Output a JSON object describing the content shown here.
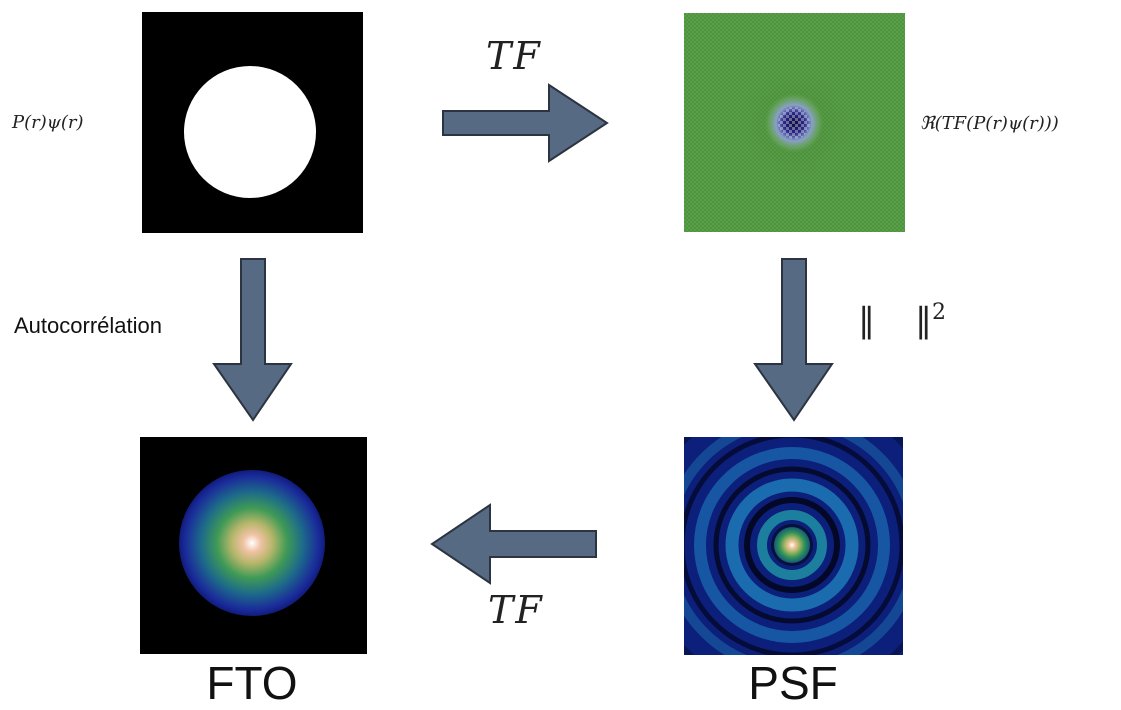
{
  "labels": {
    "pupil": "P(r)ψ(r)",
    "real_tf": "ℜ(TF(P(r)ψ(r)))",
    "tf_top": "TF",
    "tf_bottom": "TF",
    "autocorrelation": "Autocorrélation",
    "norm_squared_exponent": "2"
  },
  "captions": {
    "fto": "FTO",
    "psf": "PSF"
  },
  "colors": {
    "arrow_fill": "#566a84",
    "arrow_stroke": "#2b3440",
    "green_field": "#5aa047",
    "dark_blue": "#0c1f7a"
  }
}
